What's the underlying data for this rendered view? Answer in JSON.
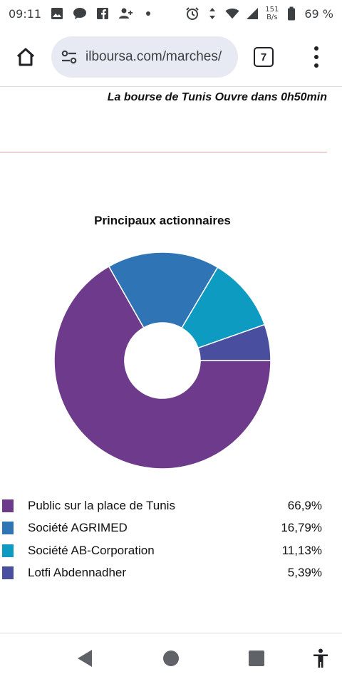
{
  "status_bar": {
    "time": "09:11",
    "net_speed_value": "151",
    "net_speed_unit": "B/s",
    "battery_percent": "69 %",
    "icons": [
      "image-icon",
      "chat-icon",
      "facebook-icon",
      "person-add-icon",
      "dot-icon",
      "alarm-icon",
      "data-arrows-icon",
      "wifi-icon",
      "signal-icon",
      "battery-icon"
    ]
  },
  "browser": {
    "url": "ilboursa.com/marches/",
    "tab_count": "7"
  },
  "page": {
    "market_status": "La bourse de Tunis Ouvre dans 0h50min",
    "chart_title": "Principaux actionnaires"
  },
  "colors": {
    "purple": "#6e3a8c",
    "blue": "#2f74b5",
    "teal": "#0e9bc2",
    "indigo": "#4a4e9e",
    "red_rule": "#e8a0a0"
  },
  "chart_data": {
    "type": "pie",
    "title": "Principaux actionnaires",
    "donut": true,
    "categories": [
      "Public sur la place de Tunis",
      "Société AGRIMED",
      "Société AB-Corporation",
      "Lotfi Abdennadher"
    ],
    "values": [
      66.9,
      16.79,
      11.13,
      5.39
    ],
    "value_labels": [
      "66,9%",
      "16,79%",
      "11,13%",
      "5,39%"
    ],
    "colors": [
      "#6e3a8c",
      "#2f74b5",
      "#0e9bc2",
      "#4a4e9e"
    ]
  },
  "nav_bar": {
    "buttons": [
      "back-icon",
      "home-circle-icon",
      "recents-icon",
      "accessibility-icon"
    ]
  }
}
